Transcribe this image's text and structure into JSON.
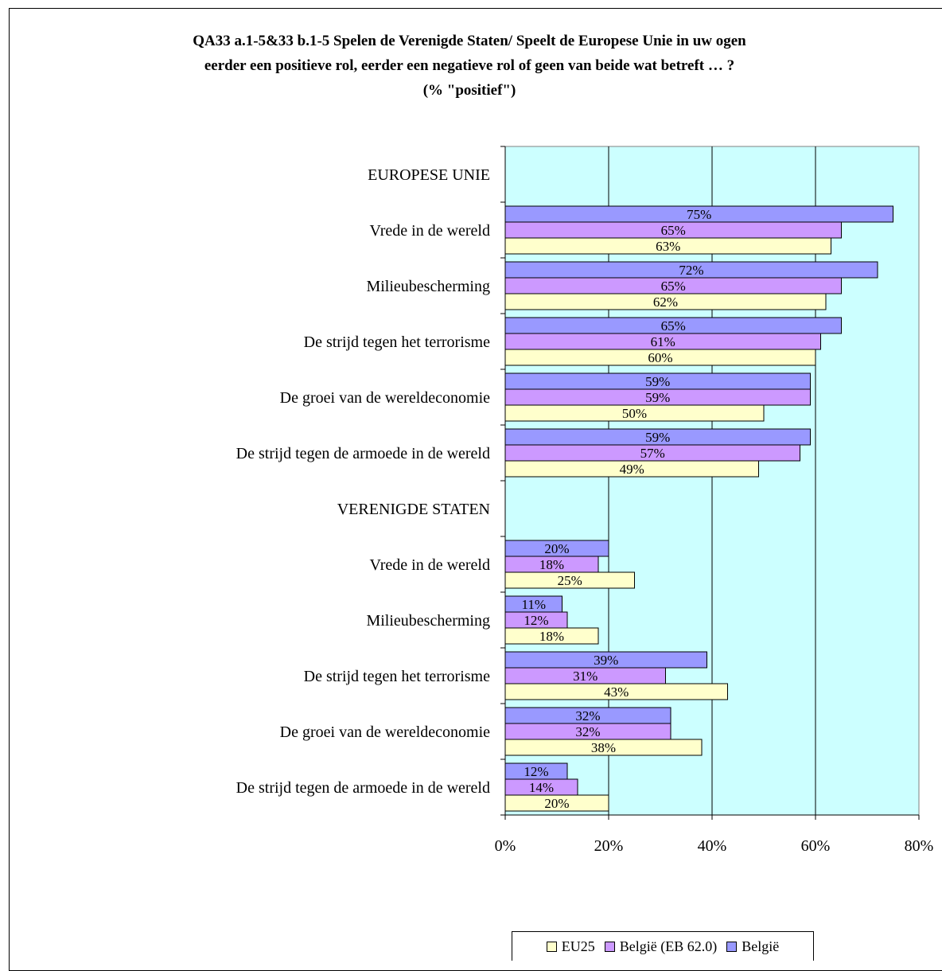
{
  "chart_data": {
    "type": "bar",
    "orientation": "horizontal",
    "title_lines": [
      "QA33 a.1-5&33 b.1-5 Spelen de Verenigde Staten/ Speelt de Europese Unie in uw ogen",
      "eerder een positieve rol, eerder een negatieve rol of geen van beide wat betreft … ?",
      "(% \"positief\")"
    ],
    "xlabel": "",
    "ylabel": "",
    "xlim": [
      0,
      80
    ],
    "x_ticks": [
      "0%",
      "20%",
      "40%",
      "60%",
      "80%"
    ],
    "grid": "vertical",
    "legend_position": "bottom-right",
    "plot_background": "#ccffff",
    "rows": [
      {
        "label": "EUROPESE UNIE",
        "is_header": true,
        "values": []
      },
      {
        "label": "Vrede in de wereld",
        "is_header": false,
        "values": [
          63,
          65,
          75
        ],
        "value_labels": [
          "63%",
          "65%",
          "75%"
        ]
      },
      {
        "label": "Milieubescherming",
        "is_header": false,
        "values": [
          62,
          65,
          72
        ],
        "value_labels": [
          "62%",
          "65%",
          "72%"
        ]
      },
      {
        "label": "De strijd tegen het terrorisme",
        "is_header": false,
        "values": [
          60,
          61,
          65
        ],
        "value_labels": [
          "60%",
          "61%",
          "65%"
        ]
      },
      {
        "label": "De groei van de wereldeconomie",
        "is_header": false,
        "values": [
          50,
          59,
          59
        ],
        "value_labels": [
          "50%",
          "59%",
          "59%"
        ]
      },
      {
        "label": "De strijd tegen de armoede in de wereld",
        "is_header": false,
        "values": [
          49,
          57,
          59
        ],
        "value_labels": [
          "49%",
          "57%",
          "59%"
        ]
      },
      {
        "label": "VERENIGDE STATEN",
        "is_header": true,
        "values": []
      },
      {
        "label": "Vrede in de wereld",
        "is_header": false,
        "values": [
          25,
          18,
          20
        ],
        "value_labels": [
          "25%",
          "18%",
          "20%"
        ]
      },
      {
        "label": "Milieubescherming",
        "is_header": false,
        "values": [
          18,
          12,
          11
        ],
        "value_labels": [
          "18%",
          "12%",
          "11%"
        ]
      },
      {
        "label": "De strijd tegen het terrorisme",
        "is_header": false,
        "values": [
          43,
          31,
          39
        ],
        "value_labels": [
          "43%",
          "31%",
          "39%"
        ]
      },
      {
        "label": "De groei van de wereldeconomie",
        "is_header": false,
        "values": [
          38,
          32,
          32
        ],
        "value_labels": [
          "38%",
          "32%",
          "32%"
        ]
      },
      {
        "label": "De strijd tegen de armoede in de wereld",
        "is_header": false,
        "values": [
          20,
          14,
          12
        ],
        "value_labels": [
          "20%",
          "14%",
          "12%"
        ]
      }
    ],
    "series": [
      {
        "name": "EU25",
        "color": "#ffffcc"
      },
      {
        "name": "België (EB 62.0)",
        "color": "#cc99ff"
      },
      {
        "name": "België",
        "color": "#9999ff"
      }
    ]
  }
}
